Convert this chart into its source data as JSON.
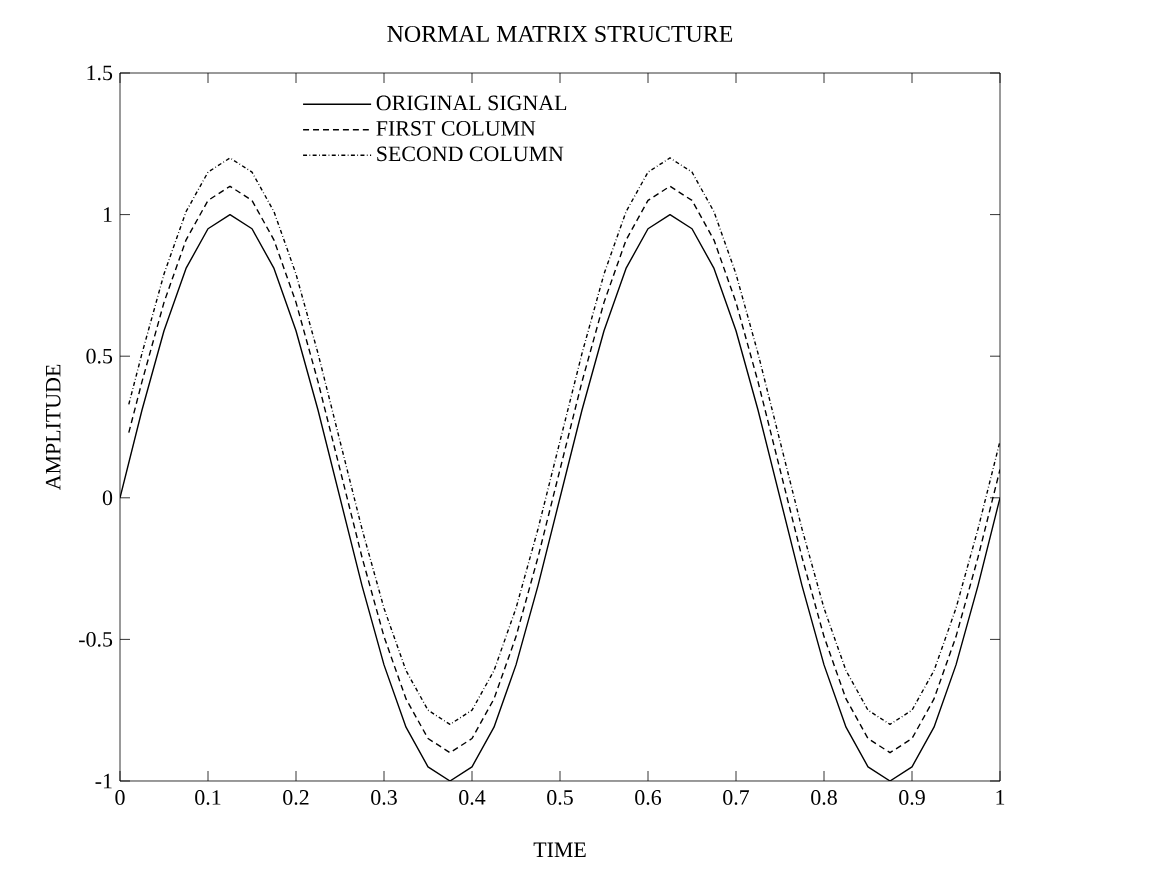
{
  "chart_data": {
    "type": "line",
    "title": "NORMAL MATRIX STRUCTURE",
    "xlabel": "TIME",
    "ylabel": "AMPLITUDE",
    "xlim": [
      0,
      1
    ],
    "ylim": [
      -1,
      1.5
    ],
    "xticks": [
      0,
      0.1,
      0.2,
      0.3,
      0.4,
      0.5,
      0.6,
      0.7,
      0.8,
      0.9,
      1
    ],
    "yticks": [
      -1,
      -0.5,
      0,
      0.5,
      1,
      1.5
    ],
    "grid": false,
    "legend": "top",
    "marker": "none",
    "x": [
      0,
      0.025,
      0.05,
      0.075,
      0.1,
      0.125,
      0.15,
      0.175,
      0.2,
      0.225,
      0.25,
      0.275,
      0.3,
      0.325,
      0.35,
      0.375,
      0.4,
      0.425,
      0.45,
      0.475,
      0.5,
      0.525,
      0.55,
      0.575,
      0.6,
      0.625,
      0.65,
      0.675,
      0.7,
      0.725,
      0.75,
      0.775,
      0.8,
      0.825,
      0.85,
      0.875,
      0.9,
      0.925,
      0.95,
      0.975,
      1
    ],
    "series": [
      {
        "name": "ORIGINAL SIGNAL",
        "color": "#000000",
        "line_style": "solid",
        "values": [
          0,
          0.31,
          0.59,
          0.81,
          0.95,
          1,
          0.95,
          0.81,
          0.59,
          0.31,
          0,
          -0.31,
          -0.59,
          -0.81,
          -0.95,
          -1,
          -0.95,
          -0.81,
          -0.59,
          -0.31,
          0,
          0.31,
          0.59,
          0.81,
          0.95,
          1,
          0.95,
          0.81,
          0.59,
          0.31,
          0,
          -0.31,
          -0.59,
          -0.81,
          -0.95,
          -1,
          -0.95,
          -0.81,
          -0.59,
          -0.31,
          0
        ]
      },
      {
        "name": "FIRST COLUMN",
        "color": "#000000",
        "line_style": "dashed",
        "x": [
          0.01,
          0.025,
          0.05,
          0.075,
          0.1,
          0.125,
          0.15,
          0.175,
          0.2,
          0.225,
          0.25,
          0.275,
          0.3,
          0.325,
          0.35,
          0.375,
          0.4,
          0.425,
          0.45,
          0.475,
          0.5,
          0.525,
          0.55,
          0.575,
          0.6,
          0.625,
          0.65,
          0.675,
          0.7,
          0.725,
          0.75,
          0.775,
          0.8,
          0.825,
          0.85,
          0.875,
          0.9,
          0.925,
          0.95,
          0.975,
          1
        ],
        "values": [
          0.23,
          0.41,
          0.69,
          0.91,
          1.05,
          1.1,
          1.05,
          0.91,
          0.69,
          0.41,
          0.1,
          -0.21,
          -0.49,
          -0.71,
          -0.85,
          -0.9,
          -0.85,
          -0.71,
          -0.49,
          -0.21,
          0.1,
          0.41,
          0.69,
          0.91,
          1.05,
          1.1,
          1.05,
          0.91,
          0.69,
          0.41,
          0.1,
          -0.21,
          -0.49,
          -0.71,
          -0.85,
          -0.9,
          -0.85,
          -0.71,
          -0.49,
          -0.21,
          0.1
        ]
      },
      {
        "name": "SECOND COLUMN",
        "color": "#000000",
        "line_style": "dotted",
        "x": [
          0.01,
          0.025,
          0.05,
          0.075,
          0.1,
          0.125,
          0.15,
          0.175,
          0.2,
          0.225,
          0.25,
          0.275,
          0.3,
          0.325,
          0.35,
          0.375,
          0.4,
          0.425,
          0.45,
          0.475,
          0.5,
          0.525,
          0.55,
          0.575,
          0.6,
          0.625,
          0.65,
          0.675,
          0.7,
          0.725,
          0.75,
          0.775,
          0.8,
          0.825,
          0.85,
          0.875,
          0.9,
          0.925,
          0.95,
          0.975,
          1
        ],
        "values": [
          0.33,
          0.51,
          0.79,
          1.01,
          1.15,
          1.2,
          1.15,
          1.01,
          0.79,
          0.51,
          0.2,
          -0.11,
          -0.39,
          -0.61,
          -0.75,
          -0.8,
          -0.75,
          -0.61,
          -0.39,
          -0.11,
          0.2,
          0.51,
          0.79,
          1.01,
          1.15,
          1.2,
          1.15,
          1.01,
          0.79,
          0.51,
          0.2,
          -0.11,
          -0.39,
          -0.61,
          -0.75,
          -0.8,
          -0.75,
          -0.61,
          -0.39,
          -0.11,
          0.2
        ]
      }
    ]
  }
}
